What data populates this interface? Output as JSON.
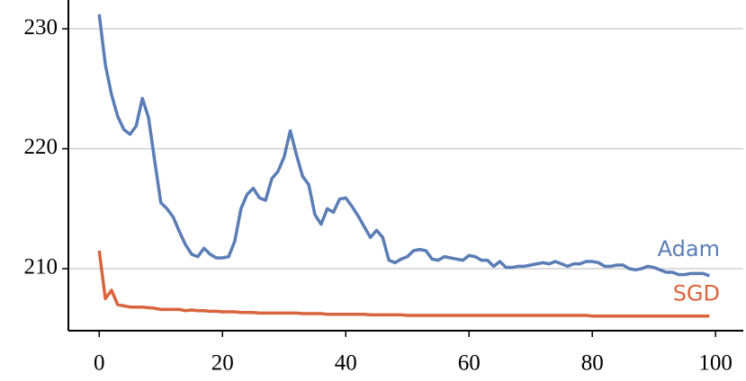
{
  "chart_data": {
    "type": "line",
    "x": [
      0,
      1,
      2,
      3,
      4,
      5,
      6,
      7,
      8,
      9,
      10,
      11,
      12,
      13,
      14,
      15,
      16,
      17,
      18,
      19,
      20,
      21,
      22,
      23,
      24,
      25,
      26,
      27,
      28,
      29,
      30,
      31,
      32,
      33,
      34,
      35,
      36,
      37,
      38,
      39,
      40,
      41,
      42,
      43,
      44,
      45,
      46,
      47,
      48,
      49,
      50,
      51,
      52,
      53,
      54,
      55,
      56,
      57,
      58,
      59,
      60,
      61,
      62,
      63,
      64,
      65,
      66,
      67,
      68,
      69,
      70,
      71,
      72,
      73,
      74,
      75,
      76,
      77,
      78,
      79,
      80,
      81,
      82,
      83,
      84,
      85,
      86,
      87,
      88,
      89,
      90,
      91,
      92,
      93,
      94,
      95,
      96,
      97,
      98,
      99
    ],
    "series": [
      {
        "name": "Adam",
        "color": "#5a7db6",
        "values": [
          231.2,
          227,
          224.5,
          222.7,
          221.6,
          221.2,
          221.9,
          224.2,
          222.6,
          219,
          215.5,
          215,
          214.3,
          213.1,
          212,
          211.2,
          211,
          211.7,
          211.2,
          210.9,
          210.9,
          211,
          212.3,
          215,
          216.2,
          216.7,
          215.9,
          215.7,
          217.5,
          218.1,
          219.3,
          221.5,
          219.5,
          217.7,
          217,
          214.5,
          213.7,
          215,
          214.7,
          215.8,
          215.9,
          215.2,
          214.4,
          213.5,
          212.6,
          213.2,
          212.6,
          210.7,
          210.5,
          210.8,
          211,
          211.5,
          211.6,
          211.5,
          210.8,
          210.7,
          211,
          210.9,
          210.8,
          210.7,
          211.1,
          211,
          210.7,
          210.7,
          210.2,
          210.6,
          210.1,
          210.1,
          210.2,
          210.2,
          210.3,
          210.4,
          210.5,
          210.4,
          210.6,
          210.4,
          210.2,
          210.4,
          210.4,
          210.6,
          210.6,
          210.5,
          210.2,
          210.2,
          210.3,
          210.3,
          210,
          209.9,
          210,
          210.2,
          210.1,
          209.9,
          209.7,
          209.7,
          209.5,
          209.5,
          209.6,
          209.6,
          209.6,
          209.4
        ]
      },
      {
        "name": "SGD",
        "color": "#d9643d",
        "values": [
          211.5,
          207.5,
          208.2,
          207,
          206.9,
          206.8,
          206.8,
          206.8,
          206.75,
          206.7,
          206.6,
          206.6,
          206.6,
          206.6,
          206.5,
          206.55,
          206.5,
          206.5,
          206.45,
          206.45,
          206.4,
          206.4,
          206.4,
          206.35,
          206.35,
          206.35,
          206.3,
          206.3,
          206.3,
          206.3,
          206.3,
          206.3,
          206.3,
          206.25,
          206.25,
          206.25,
          206.25,
          206.2,
          206.2,
          206.2,
          206.2,
          206.2,
          206.2,
          206.2,
          206.15,
          206.15,
          206.15,
          206.15,
          206.15,
          206.15,
          206.1,
          206.1,
          206.1,
          206.1,
          206.1,
          206.1,
          206.1,
          206.1,
          206.1,
          206.1,
          206.1,
          206.1,
          206.1,
          206.1,
          206.1,
          206.1,
          206.1,
          206.1,
          206.1,
          206.1,
          206.1,
          206.1,
          206.1,
          206.1,
          206.1,
          206.1,
          206.1,
          206.1,
          206.1,
          206.1,
          206.05,
          206.05,
          206.05,
          206.05,
          206.05,
          206.05,
          206.05,
          206.05,
          206.05,
          206.05,
          206.05,
          206.05,
          206.05,
          206.05,
          206.05,
          206.05,
          206.05,
          206.05,
          206.05,
          206.05
        ]
      }
    ],
    "xlim": [
      -5,
      104.5
    ],
    "ylim": [
      204.83,
      232.4
    ],
    "xticks": [
      0,
      20,
      40,
      60,
      80,
      100
    ],
    "yticks": [
      210,
      220,
      230
    ],
    "grid": true
  }
}
